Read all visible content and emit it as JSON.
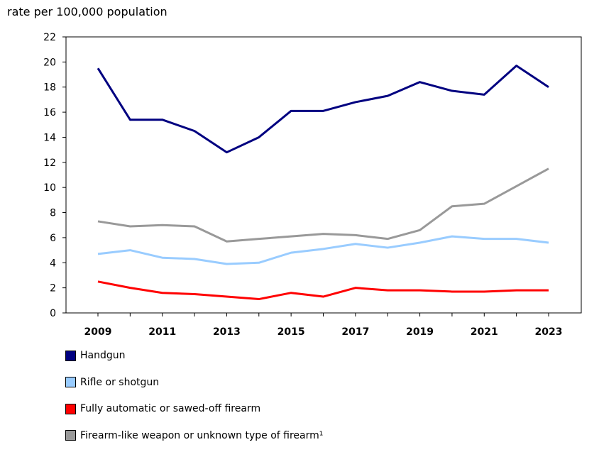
{
  "chart_data": {
    "type": "line",
    "title": "",
    "ylabel": "rate per 100,000 population",
    "xlabel": "",
    "ylim": [
      0,
      22
    ],
    "yticks": [
      0,
      2,
      4,
      6,
      8,
      10,
      12,
      14,
      16,
      18,
      20,
      22
    ],
    "x": [
      2009,
      2010,
      2011,
      2012,
      2013,
      2014,
      2015,
      2016,
      2017,
      2018,
      2019,
      2020,
      2021,
      2022,
      2023
    ],
    "xticklabels": [
      "2009",
      "2011",
      "2013",
      "2015",
      "2017",
      "2019",
      "2021",
      "2023"
    ],
    "grid": false,
    "legend_position": "bottom",
    "series": [
      {
        "name": "Handgun",
        "color": "#000080",
        "values": [
          19.5,
          15.4,
          15.4,
          14.5,
          12.8,
          14.0,
          16.1,
          16.1,
          16.8,
          17.3,
          18.4,
          17.7,
          17.4,
          19.7,
          18.0
        ]
      },
      {
        "name": "Rifle or shotgun",
        "color": "#99ccff",
        "values": [
          4.7,
          5.0,
          4.4,
          4.3,
          3.9,
          4.0,
          4.8,
          5.1,
          5.5,
          5.2,
          5.6,
          6.1,
          5.9,
          5.9,
          5.6
        ]
      },
      {
        "name": "Fully automatic or sawed-off firearm",
        "color": "#ff0000",
        "values": [
          2.5,
          2.0,
          1.6,
          1.5,
          1.3,
          1.1,
          1.6,
          1.3,
          2.0,
          1.8,
          1.8,
          1.7,
          1.7,
          1.8,
          1.8
        ]
      },
      {
        "name": "Firearm-like weapon or unknown type of firearm¹",
        "color": "#999999",
        "values": [
          7.3,
          6.9,
          7.0,
          6.9,
          5.7,
          5.9,
          6.1,
          6.3,
          6.2,
          5.9,
          6.6,
          8.5,
          8.7,
          10.1,
          11.5
        ]
      }
    ]
  }
}
